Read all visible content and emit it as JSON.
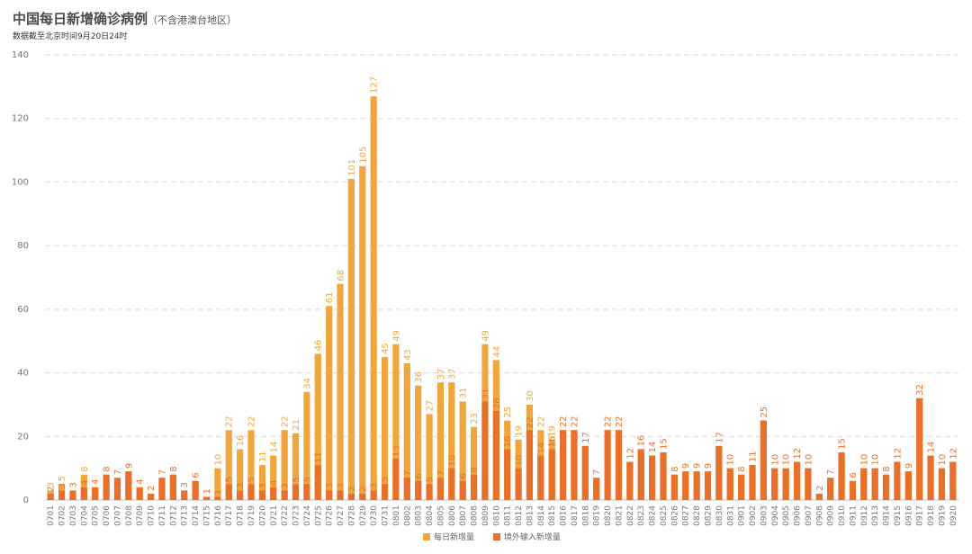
{
  "header": {
    "title": "中国每日新增确诊病例",
    "title_suffix": "（不含港澳台地区）",
    "subtitle": "数据截至北京时间9月20日24时"
  },
  "colors": {
    "total": "#f0a63c",
    "imported": "#e8702a",
    "grid": "#d9d9d9"
  },
  "chart_data": {
    "type": "bar",
    "categories": [
      "0701",
      "0702",
      "0703",
      "0704",
      "0705",
      "0706",
      "0707",
      "0708",
      "0709",
      "0710",
      "0711",
      "0712",
      "0713",
      "0714",
      "0715",
      "0716",
      "0717",
      "0718",
      "0719",
      "0720",
      "0721",
      "0722",
      "0723",
      "0724",
      "0725",
      "0726",
      "0727",
      "0728",
      "0729",
      "0730",
      "0731",
      "0801",
      "0802",
      "0803",
      "0804",
      "0805",
      "0806",
      "0807",
      "0808",
      "0809",
      "0810",
      "0811",
      "0812",
      "0813",
      "0814",
      "0815",
      "0816",
      "0817",
      "0818",
      "0819",
      "0820",
      "0821",
      "0822",
      "0823",
      "0824",
      "0825",
      "0826",
      "0827",
      "0828",
      "0829",
      "0830",
      "0831",
      "0901",
      "0902",
      "0903",
      "0904",
      "0905",
      "0906",
      "0907",
      "0908",
      "0909",
      "0910",
      "0911",
      "0912",
      "0913",
      "0914",
      "0915",
      "0916",
      "0917",
      "0918",
      "0919",
      "0920"
    ],
    "series": [
      {
        "name": "每日新增量",
        "values": [
          3,
          5,
          3,
          8,
          4,
          8,
          7,
          9,
          4,
          2,
          7,
          8,
          3,
          6,
          1,
          10,
          22,
          16,
          22,
          11,
          14,
          22,
          21,
          34,
          46,
          61,
          68,
          101,
          105,
          127,
          45,
          49,
          43,
          36,
          27,
          37,
          37,
          31,
          23,
          49,
          44,
          25,
          19,
          30,
          22,
          19,
          22,
          22,
          17,
          7,
          22,
          22,
          12,
          16,
          14,
          15,
          8,
          9,
          9,
          9,
          17,
          10,
          8,
          11,
          25,
          10,
          10,
          12,
          10,
          2,
          7,
          15,
          6,
          10,
          10,
          8,
          12,
          9,
          32,
          14,
          10,
          12
        ]
      },
      {
        "name": "境外输入新增量",
        "values": [
          2,
          3,
          3,
          4,
          4,
          8,
          7,
          9,
          4,
          2,
          7,
          8,
          3,
          6,
          1,
          1,
          5,
          3,
          5,
          3,
          4,
          3,
          5,
          5,
          11,
          3,
          3,
          2,
          2,
          3,
          5,
          13,
          7,
          6,
          5,
          7,
          10,
          6,
          8,
          31,
          28,
          16,
          10,
          22,
          14,
          16,
          22,
          22,
          17,
          7,
          22,
          22,
          12,
          16,
          14,
          15,
          8,
          9,
          9,
          9,
          17,
          10,
          8,
          11,
          25,
          10,
          10,
          12,
          10,
          2,
          7,
          15,
          6,
          10,
          10,
          8,
          12,
          9,
          32,
          14,
          10,
          12
        ]
      }
    ],
    "yticks": [
      0,
      20,
      40,
      60,
      80,
      100,
      120,
      140
    ],
    "ylim": [
      0,
      140
    ],
    "grid": true,
    "legend_position": "bottom-center"
  }
}
